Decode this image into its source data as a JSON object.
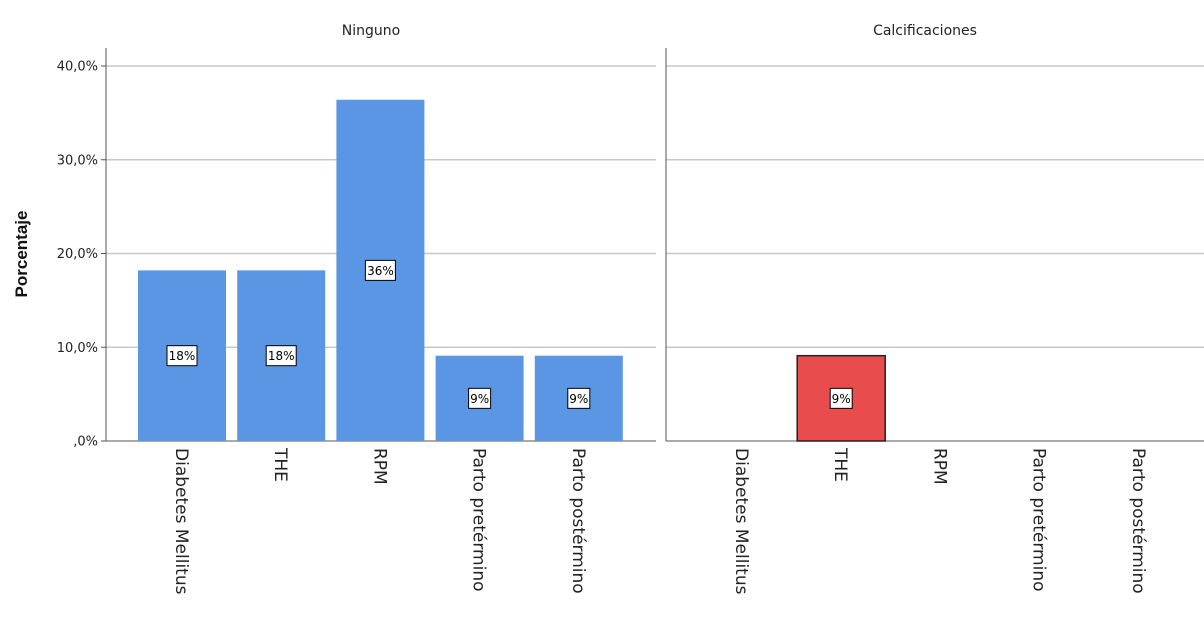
{
  "chart_data": {
    "type": "bar",
    "ylabel": "Porcentaje",
    "ylim": [
      0,
      40
    ],
    "yticks": [
      ",0%",
      "10,0%",
      "20,0%",
      "30,0%",
      "40,0%"
    ],
    "categories": [
      "Diabetes Mellitus",
      "THE",
      "RPM",
      "Parto pretérmino",
      "Parto postérmino"
    ],
    "grid": true,
    "panels": [
      {
        "title": "Ninguno",
        "values": [
          18.2,
          18.2,
          36.4,
          9.1,
          9.1
        ],
        "labels": [
          "18%",
          "18%",
          "36%",
          "9%",
          "9%"
        ],
        "color": "#5a96e3"
      },
      {
        "title": "Calcificaciones",
        "values": [
          0,
          9.1,
          0,
          0,
          0
        ],
        "labels": [
          "",
          "9%",
          "",
          "",
          ""
        ],
        "color": "#e84c4c"
      }
    ]
  }
}
